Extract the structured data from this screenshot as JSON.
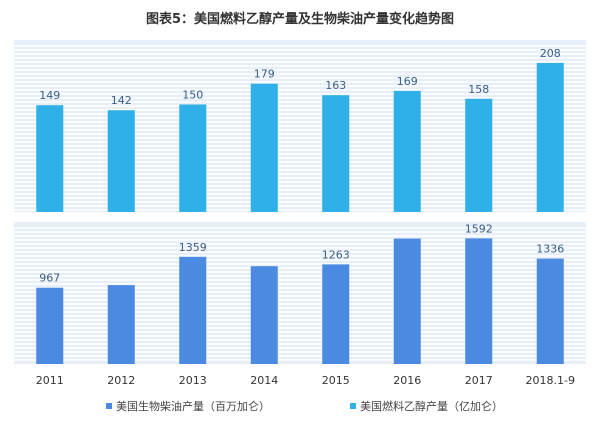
{
  "title": "图表5：美国燃料乙醇产量及生物柴油产量变化趋势图",
  "colors": {
    "panel_bg": "#e6eef8",
    "grid": "#ffffff",
    "ethanol_bar": "#2fb0e8",
    "diesel_bar": "#4a8ae0",
    "label": "#3a5e86",
    "axis_text": "#333333"
  },
  "chart_data": [
    {
      "type": "bar",
      "title": "",
      "categories": [
        "2011",
        "2012",
        "2013",
        "2014",
        "2015",
        "2016",
        "2017",
        "2018.1-9"
      ],
      "series": [
        {
          "name": "美国燃料乙醇产量（亿加仑）",
          "values": [
            149,
            142,
            150,
            179,
            163,
            169,
            158,
            208
          ]
        }
      ],
      "data_labels": [
        "149",
        "142",
        "150",
        "179",
        "163",
        "169",
        "158",
        "208"
      ],
      "ylim": [
        0,
        240
      ],
      "grid": true
    },
    {
      "type": "bar",
      "title": "",
      "categories": [
        "2011",
        "2012",
        "2013",
        "2014",
        "2015",
        "2016",
        "2017",
        "2018.1-9"
      ],
      "series": [
        {
          "name": "美国生物柴油产量（百万加仑）",
          "values": [
            967,
            1000,
            1359,
            1240,
            1263,
            1590,
            1592,
            1336
          ]
        }
      ],
      "data_labels": [
        "967",
        "",
        "1359",
        "",
        "1263",
        "",
        "1592",
        "1336"
      ],
      "ylim": [
        0,
        1800
      ],
      "grid": true
    }
  ],
  "legend": [
    {
      "label": "美国生物柴油产量（百万加仑）",
      "color": "#4a8ae0"
    },
    {
      "label": "美国燃料乙醇产量（亿加仑）",
      "color": "#2fb0e8"
    }
  ]
}
